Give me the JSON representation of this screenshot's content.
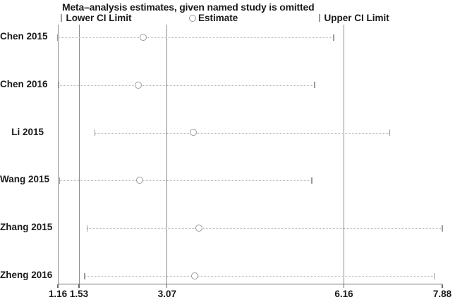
{
  "title": "Meta–analysis estimates, given named study is omitted",
  "legend": {
    "lower": {
      "label": "Lower CI Limit"
    },
    "estimate": {
      "label": "Estimate"
    },
    "upper": {
      "label": "Upper CI Limit"
    }
  },
  "chart_data": {
    "type": "scatter",
    "subtype": "leave-one-out-sensitivity",
    "title": "Meta–analysis estimates, given named study is omitted",
    "legend_entries": [
      "Lower CI Limit",
      "Estimate",
      "Upper CI Limit"
    ],
    "axis": {
      "min": 1.16,
      "max": 7.88,
      "ticks": [
        "1.16",
        "1.53",
        "3.07",
        "6.16",
        "7.88"
      ],
      "tick_values": [
        1.16,
        1.53,
        3.07,
        6.16,
        7.88
      ],
      "grid": "vertical-reference-lines-only"
    },
    "overall": {
      "lower": 1.53,
      "estimate": 3.07,
      "upper": 6.16
    },
    "studies": [
      {
        "name": "Chen 2015",
        "lower": 1.16,
        "estimate": 2.65,
        "upper": 5.98
      },
      {
        "name": "Chen 2016",
        "lower": 1.17,
        "estimate": 2.57,
        "upper": 5.65
      },
      {
        "name": "Li 2015",
        "lower": 1.81,
        "estimate": 3.53,
        "upper": 6.96
      },
      {
        "name": "Wang 2015",
        "lower": 1.19,
        "estimate": 2.59,
        "upper": 5.6
      },
      {
        "name": "Zhang 2015",
        "lower": 1.67,
        "estimate": 3.63,
        "upper": 7.88
      },
      {
        "name": "Zheng 2016",
        "lower": 1.63,
        "estimate": 3.55,
        "upper": 7.74
      }
    ],
    "colors": {
      "text": "#1a1a1a",
      "gridline": "#8c8c8c",
      "ci_dotted_line": "#b9b9b9",
      "marker_outline": "#9a9a9a",
      "axis": "#6b6b6b",
      "background": "#ffffff"
    }
  }
}
